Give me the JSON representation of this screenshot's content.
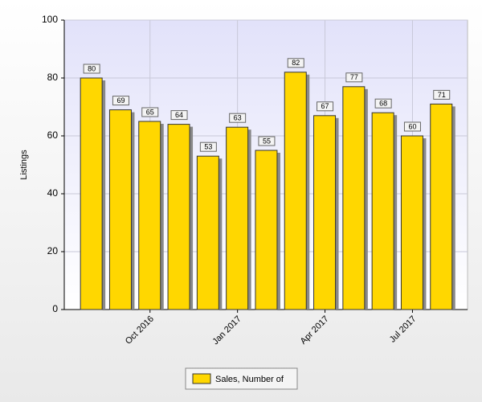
{
  "chart_data": {
    "type": "bar",
    "y_label": "Listings",
    "categories": [
      null,
      null,
      "Oct 2016",
      null,
      null,
      "Jan 2017",
      null,
      null,
      "Apr 2017",
      null,
      null,
      "Jul 2017",
      null
    ],
    "series": [
      {
        "name": "Sales, Number of",
        "color": "#FFD700",
        "values": [
          80,
          69,
          65,
          64,
          53,
          63,
          55,
          82,
          67,
          77,
          68,
          60,
          71
        ]
      }
    ],
    "ylim": [
      0,
      100
    ],
    "yticks": [
      0,
      20,
      40,
      60,
      80,
      100
    ],
    "grid": true,
    "legend": "bottom"
  }
}
